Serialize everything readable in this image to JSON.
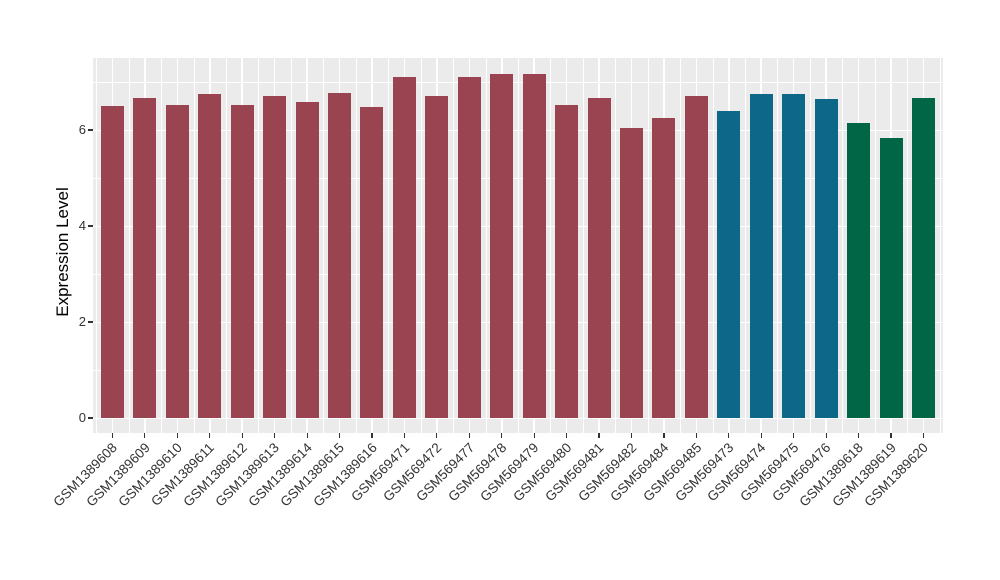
{
  "chart_data": {
    "type": "bar",
    "title": "",
    "xlabel": "",
    "ylabel": "Expression Level",
    "categories": [
      "GSM1389608",
      "GSM1389609",
      "GSM1389610",
      "GSM1389611",
      "GSM1389612",
      "GSM1389613",
      "GSM1389614",
      "GSM1389615",
      "GSM1389616",
      "GSM569471",
      "GSM569472",
      "GSM569477",
      "GSM569478",
      "GSM569479",
      "GSM569480",
      "GSM569481",
      "GSM569482",
      "GSM569484",
      "GSM569485",
      "GSM569473",
      "GSM569474",
      "GSM569475",
      "GSM569476",
      "GSM1389618",
      "GSM1389619",
      "GSM1389620"
    ],
    "values": [
      6.49,
      6.67,
      6.52,
      6.74,
      6.52,
      6.71,
      6.59,
      6.78,
      6.48,
      7.11,
      6.71,
      7.11,
      7.17,
      7.17,
      6.53,
      6.66,
      6.04,
      6.25,
      6.71,
      6.4,
      6.75,
      6.75,
      6.65,
      6.15,
      5.83,
      6.66
    ],
    "bar_colors": [
      "#9A4451",
      "#9A4451",
      "#9A4451",
      "#9A4451",
      "#9A4451",
      "#9A4451",
      "#9A4451",
      "#9A4451",
      "#9A4451",
      "#9A4451",
      "#9A4451",
      "#9A4451",
      "#9A4451",
      "#9A4451",
      "#9A4451",
      "#9A4451",
      "#9A4451",
      "#9A4451",
      "#9A4451",
      "#0C6788",
      "#0C6788",
      "#0C6788",
      "#0C6788",
      "#006646",
      "#006646",
      "#006646"
    ],
    "color_groups": [
      {
        "color": "#9A4451",
        "bar_count": 19
      },
      {
        "color": "#0C6788",
        "bar_count": 4
      },
      {
        "color": "#006646",
        "bar_count": 3
      }
    ],
    "y_ticks": [
      0,
      2,
      4,
      6
    ],
    "y_minor_gridlines": [
      1,
      3,
      5,
      7
    ],
    "ylim": [
      -0.31,
      7.5
    ],
    "grid": true,
    "legend": "none",
    "panel_bg": "#EBEBEB",
    "gridline_color": "#FFFFFF",
    "axis_text_color": "#333333"
  }
}
